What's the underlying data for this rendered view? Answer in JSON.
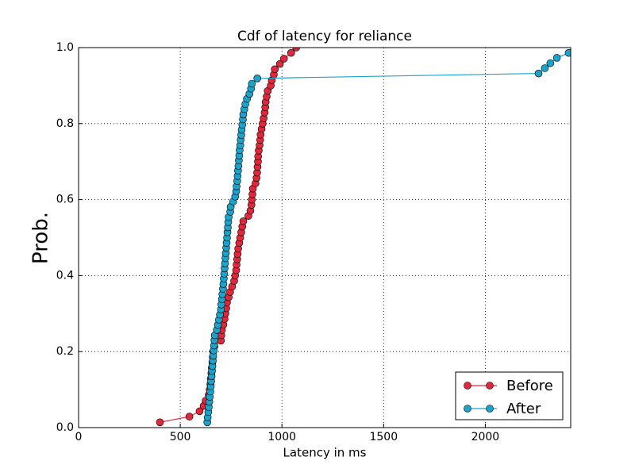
{
  "chart_data": {
    "type": "line",
    "title": "Cdf of latency for reliance",
    "xlabel": "Latency in ms",
    "ylabel": "Prob.",
    "xlim": [
      0,
      2420
    ],
    "ylim": [
      0,
      1
    ],
    "xticks": [
      0,
      500,
      1000,
      1500,
      2000
    ],
    "yticks": [
      {
        "value": 0,
        "label": "0.0"
      },
      {
        "value": 0.2,
        "label": "0.2"
      },
      {
        "value": 0.4,
        "label": "0.4"
      },
      {
        "value": 0.6,
        "label": "0.6"
      },
      {
        "value": 0.8,
        "label": "0.8"
      },
      {
        "value": 1,
        "label": "1.0"
      }
    ],
    "grid": true,
    "legend": "lower right",
    "series": [
      {
        "name": "Before",
        "color": "#e0283c",
        "x": [
          400,
          545,
          595,
          615,
          625,
          640,
          645,
          648,
          650,
          653,
          655,
          658,
          660,
          662,
          668,
          700,
          702,
          705,
          712,
          718,
          722,
          726,
          730,
          738,
          745,
          755,
          765,
          770,
          775,
          777,
          780,
          782,
          785,
          790,
          795,
          800,
          805,
          810,
          835,
          845,
          850,
          852,
          855,
          857,
          870,
          875,
          878,
          880,
          882,
          883,
          886,
          890,
          893,
          895,
          900,
          905,
          910,
          915,
          918,
          920,
          925,
          930,
          945,
          950,
          960,
          965,
          990,
          1010,
          1045,
          1070
        ],
        "values": [
          0.014,
          0.029,
          0.043,
          0.057,
          0.071,
          0.086,
          0.1,
          0.114,
          0.129,
          0.143,
          0.157,
          0.171,
          0.186,
          0.2,
          0.214,
          0.229,
          0.243,
          0.257,
          0.271,
          0.286,
          0.3,
          0.314,
          0.329,
          0.343,
          0.357,
          0.371,
          0.386,
          0.4,
          0.414,
          0.429,
          0.443,
          0.457,
          0.471,
          0.486,
          0.5,
          0.514,
          0.529,
          0.543,
          0.557,
          0.571,
          0.586,
          0.6,
          0.614,
          0.629,
          0.643,
          0.657,
          0.671,
          0.686,
          0.7,
          0.714,
          0.729,
          0.743,
          0.757,
          0.771,
          0.786,
          0.8,
          0.814,
          0.829,
          0.843,
          0.857,
          0.871,
          0.886,
          0.9,
          0.914,
          0.929,
          0.943,
          0.957,
          0.971,
          0.986,
          1
        ]
      },
      {
        "name": "After",
        "color": "#1ba3cc",
        "x": [
          633,
          635,
          638,
          640,
          643,
          645,
          648,
          650,
          652,
          654,
          656,
          658,
          660,
          662,
          664,
          666,
          668,
          670,
          680,
          685,
          690,
          695,
          700,
          702,
          705,
          707,
          710,
          712,
          714,
          716,
          718,
          720,
          722,
          724,
          726,
          728,
          730,
          732,
          734,
          736,
          738,
          746,
          748,
          760,
          770,
          775,
          777,
          780,
          782,
          784,
          786,
          788,
          790,
          792,
          795,
          797,
          800,
          802,
          805,
          808,
          810,
          815,
          820,
          828,
          840,
          848,
          852,
          879,
          2262,
          2293,
          2320,
          2352,
          2410
        ],
        "values": [
          0.014,
          0.027,
          0.041,
          0.054,
          0.068,
          0.081,
          0.095,
          0.108,
          0.122,
          0.135,
          0.149,
          0.162,
          0.176,
          0.189,
          0.203,
          0.216,
          0.23,
          0.243,
          0.257,
          0.27,
          0.284,
          0.297,
          0.311,
          0.324,
          0.338,
          0.351,
          0.365,
          0.378,
          0.392,
          0.405,
          0.419,
          0.432,
          0.446,
          0.459,
          0.473,
          0.486,
          0.5,
          0.514,
          0.527,
          0.541,
          0.554,
          0.568,
          0.581,
          0.595,
          0.608,
          0.622,
          0.635,
          0.649,
          0.662,
          0.676,
          0.689,
          0.703,
          0.716,
          0.73,
          0.743,
          0.757,
          0.77,
          0.784,
          0.797,
          0.811,
          0.824,
          0.838,
          0.851,
          0.865,
          0.878,
          0.892,
          0.905,
          0.919,
          0.932,
          0.946,
          0.959,
          0.973,
          0.986
        ]
      }
    ]
  }
}
